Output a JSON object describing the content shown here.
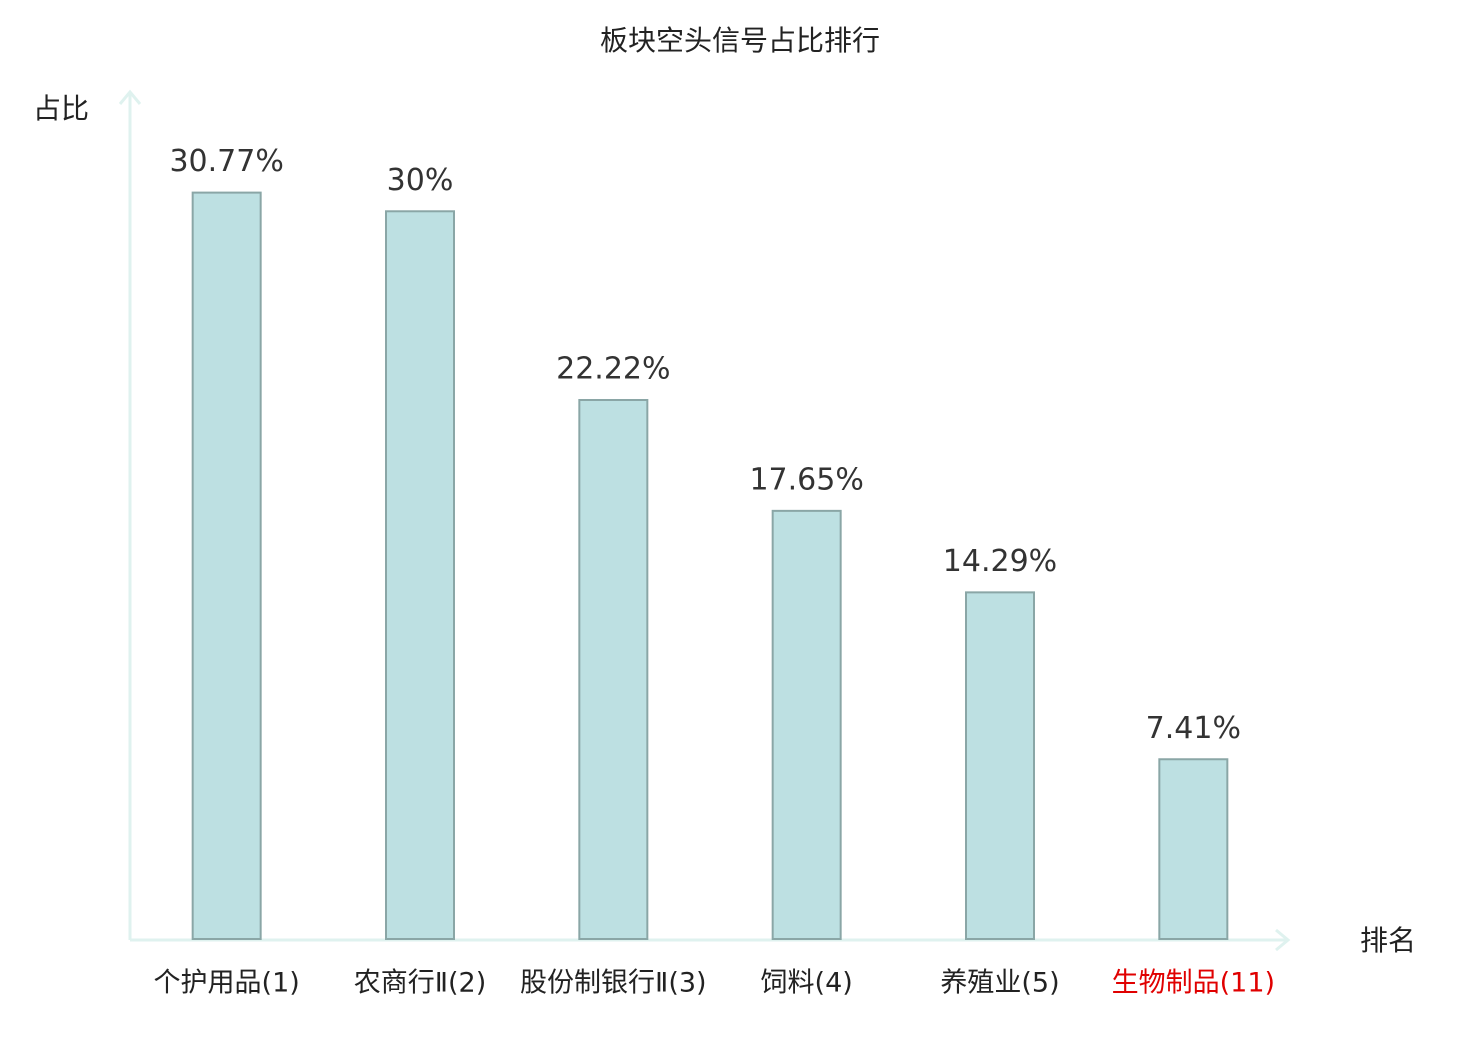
{
  "chart_data": {
    "type": "bar",
    "title": "板块空头信号占比排行",
    "y_label": "占比",
    "x_label": "排名",
    "categories": [
      "个护用品(1)",
      "农商行Ⅱ(2)",
      "股份制银行Ⅱ(3)",
      "饲料(4)",
      "养殖业(5)",
      "生物制品(11)"
    ],
    "values": [
      30.77,
      30,
      22.22,
      17.65,
      14.29,
      7.41
    ],
    "value_labels": [
      "30.77%",
      "30%",
      "22.22%",
      "17.65%",
      "14.29%",
      "7.41%"
    ],
    "color": "#bde0e2",
    "label_colors": [
      "#222222",
      "#222222",
      "#222222",
      "#222222",
      "#222222",
      "#e00000"
    ],
    "ylim": [
      0,
      35
    ]
  }
}
